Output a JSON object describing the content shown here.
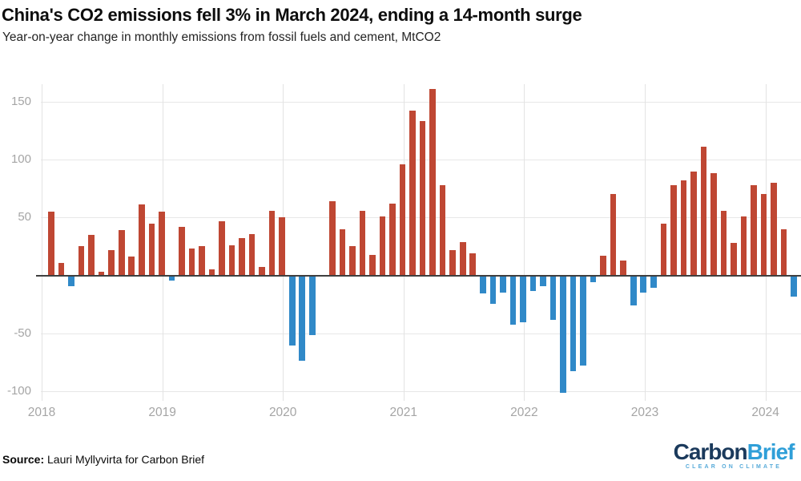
{
  "header": {
    "title": "China's CO2 emissions fell 3% in March 2024, ending a 14-month surge",
    "subtitle": "Year-on-year change in monthly emissions from fossil fuels and cement, MtCO2"
  },
  "footer": {
    "source_label": "Source:",
    "source_text": " Lauri Myllyvirta for Carbon Brief"
  },
  "logo": {
    "part1": "Carbon",
    "part2": "Brief",
    "tagline": "CLEAR ON CLIMATE",
    "color_dark": "#1b3a5c",
    "color_light": "#2f9fd8",
    "color_tagline": "#57aad9"
  },
  "chart_data": {
    "type": "bar",
    "title": "China's CO2 emissions fell 3% in March 2024, ending a 14-month surge",
    "subtitle": "Year-on-year change in monthly emissions from fossil fuels and cement, MtCO2",
    "ylabel": "MtCO2",
    "ylim": [
      -115,
      170
    ],
    "yticks": [
      150,
      100,
      50,
      -50,
      -100
    ],
    "xticks": [
      "2018",
      "2019",
      "2020",
      "2021",
      "2022",
      "2023",
      "2024"
    ],
    "grid": true,
    "legend": "none",
    "positive_color": "#bf4733",
    "negative_color": "#3089c8",
    "x": [
      "2018-01",
      "2018-02",
      "2018-03",
      "2018-04",
      "2018-05",
      "2018-06",
      "2018-07",
      "2018-08",
      "2018-09",
      "2018-10",
      "2018-11",
      "2018-12",
      "2019-01",
      "2019-02",
      "2019-03",
      "2019-04",
      "2019-05",
      "2019-06",
      "2019-07",
      "2019-08",
      "2019-09",
      "2019-10",
      "2019-11",
      "2019-12",
      "2020-01",
      "2020-02",
      "2020-03",
      "2020-04",
      "2020-05",
      "2020-06",
      "2020-07",
      "2020-08",
      "2020-09",
      "2020-10",
      "2020-11",
      "2020-12",
      "2021-01",
      "2021-02",
      "2021-03",
      "2021-04",
      "2021-05",
      "2021-06",
      "2021-07",
      "2021-08",
      "2021-09",
      "2021-10",
      "2021-11",
      "2021-12",
      "2022-01",
      "2022-02",
      "2022-03",
      "2022-04",
      "2022-05",
      "2022-06",
      "2022-07",
      "2022-08",
      "2022-09",
      "2022-10",
      "2022-11",
      "2022-12",
      "2023-01",
      "2023-02",
      "2023-03",
      "2023-04",
      "2023-05",
      "2023-06",
      "2023-07",
      "2023-08",
      "2023-09",
      "2023-10",
      "2023-11",
      "2023-12",
      "2024-01",
      "2024-02",
      "2024-03"
    ],
    "values": [
      55,
      11,
      -9,
      25,
      35,
      3,
      22,
      39,
      16,
      61,
      45,
      55,
      -4,
      42,
      23,
      25,
      5,
      47,
      26,
      32,
      36,
      7,
      56,
      50,
      -60,
      -73,
      -51,
      0,
      64,
      40,
      25,
      56,
      18,
      51,
      62,
      96,
      142,
      133,
      161,
      78,
      22,
      29,
      19,
      -15,
      -24,
      -14,
      -42,
      -40,
      -13,
      -9,
      -38,
      -101,
      -82,
      -77,
      -5,
      17,
      70,
      13,
      -25,
      -14,
      -10,
      45,
      78,
      82,
      90,
      111,
      88,
      56,
      28,
      51,
      78,
      70,
      80,
      40,
      -18
    ]
  }
}
